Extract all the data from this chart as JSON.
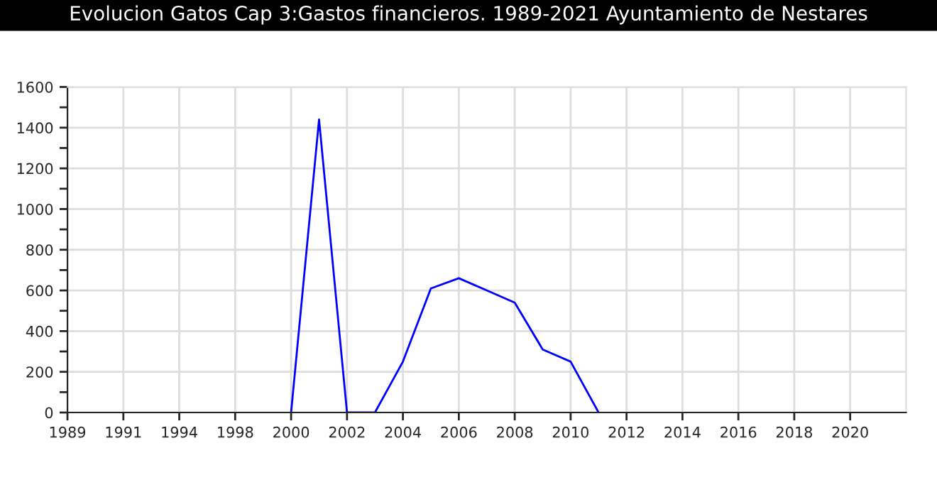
{
  "chart_data": {
    "type": "line",
    "title": "Evolucion Gatos Cap 3:Gastos financieros. 1989-2021 Ayuntamiento de Nestares",
    "categories": [
      "1989",
      null,
      "1991",
      null,
      "1994",
      null,
      "1998",
      null,
      "2000",
      null,
      "2002",
      null,
      "2004",
      null,
      "2006",
      null,
      "2008",
      null,
      "2010",
      null,
      "2012",
      null,
      "2014",
      null,
      "2016",
      null,
      "2018",
      null,
      "2020",
      null
    ],
    "series": [
      {
        "color": "#0000ff",
        "values": [
          null,
          null,
          null,
          null,
          null,
          null,
          null,
          null,
          0,
          1440,
          0,
          0,
          250,
          610,
          660,
          600,
          540,
          310,
          250,
          0,
          null,
          null,
          null,
          null,
          null,
          null,
          null,
          null,
          null,
          null
        ]
      }
    ],
    "ylim": [
      0,
      1600
    ],
    "yticks": [
      0,
      {
        "value": 100,
        "label": null
      },
      200,
      {
        "value": 300,
        "label": null
      },
      400,
      {
        "value": 500,
        "label": null
      },
      600,
      {
        "value": 700,
        "label": null
      },
      800,
      {
        "value": 900,
        "label": null
      },
      1000,
      {
        "value": 1100,
        "label": null
      },
      1200,
      {
        "value": 1300,
        "label": null
      },
      1400,
      {
        "value": 1500,
        "label": null
      },
      1600
    ],
    "grid": true,
    "marker": "none",
    "line_style": "solid"
  }
}
